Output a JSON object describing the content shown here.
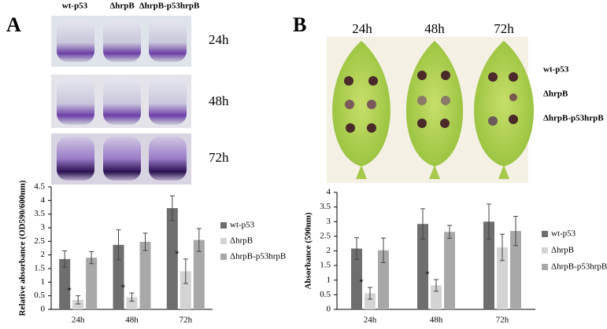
{
  "figure": {
    "panel_labels": [
      "A",
      "B"
    ],
    "tube_labels": [
      "wt-p53",
      "ΔhrpB",
      "ΔhrpB-p53hrpB"
    ],
    "tube_times": [
      "24h",
      "48h",
      "72h"
    ],
    "leaf_times": [
      "24h",
      "48h",
      "72h"
    ],
    "leaf_labels": [
      "wt-p53",
      "ΔhrpB",
      "ΔhrpB-p53hrpB"
    ]
  },
  "chart_data": [
    {
      "type": "bar",
      "ylabel": "Relative absorbance (OD590/600nm)",
      "categories": [
        "24h",
        "48h",
        "72h"
      ],
      "ylim": [
        0,
        4.5
      ],
      "yticks": [
        0,
        0.5,
        1,
        1.5,
        2,
        2.5,
        3,
        3.5,
        4,
        4.5
      ],
      "series": [
        {
          "name": "wt-p53",
          "color": "#6e6e6e",
          "values": [
            1.85,
            2.37,
            3.72
          ],
          "errors": [
            0.3,
            0.55,
            0.45
          ]
        },
        {
          "name": "ΔhrpB",
          "color": "#d3d3d3",
          "values": [
            0.35,
            0.45,
            1.4
          ],
          "errors": [
            0.15,
            0.15,
            0.45
          ],
          "markers": [
            "*",
            "*",
            "*"
          ]
        },
        {
          "name": "ΔhrpB-p53hrpB",
          "color": "#a8a8a8",
          "values": [
            1.9,
            2.48,
            2.55
          ],
          "errors": [
            0.22,
            0.32,
            0.42
          ]
        }
      ]
    },
    {
      "type": "bar",
      "ylabel": "Absorbance (590nm)",
      "categories": [
        "24h",
        "48h",
        "72h"
      ],
      "ylim": [
        0,
        4
      ],
      "yticks": [
        0,
        0.5,
        1,
        1.5,
        2,
        2.5,
        3,
        3.5,
        4
      ],
      "series": [
        {
          "name": "wt-p53",
          "color": "#6e6e6e",
          "values": [
            2.08,
            2.92,
            3.0
          ],
          "errors": [
            0.37,
            0.52,
            0.6
          ]
        },
        {
          "name": "ΔhrpB",
          "color": "#d3d3d3",
          "values": [
            0.55,
            0.82,
            2.12
          ],
          "errors": [
            0.2,
            0.2,
            0.45
          ],
          "markers": [
            "*",
            "*",
            null
          ]
        },
        {
          "name": "ΔhrpB-p53hrpB",
          "color": "#a8a8a8",
          "values": [
            2.02,
            2.65,
            2.68
          ],
          "errors": [
            0.42,
            0.22,
            0.5
          ]
        }
      ]
    }
  ]
}
